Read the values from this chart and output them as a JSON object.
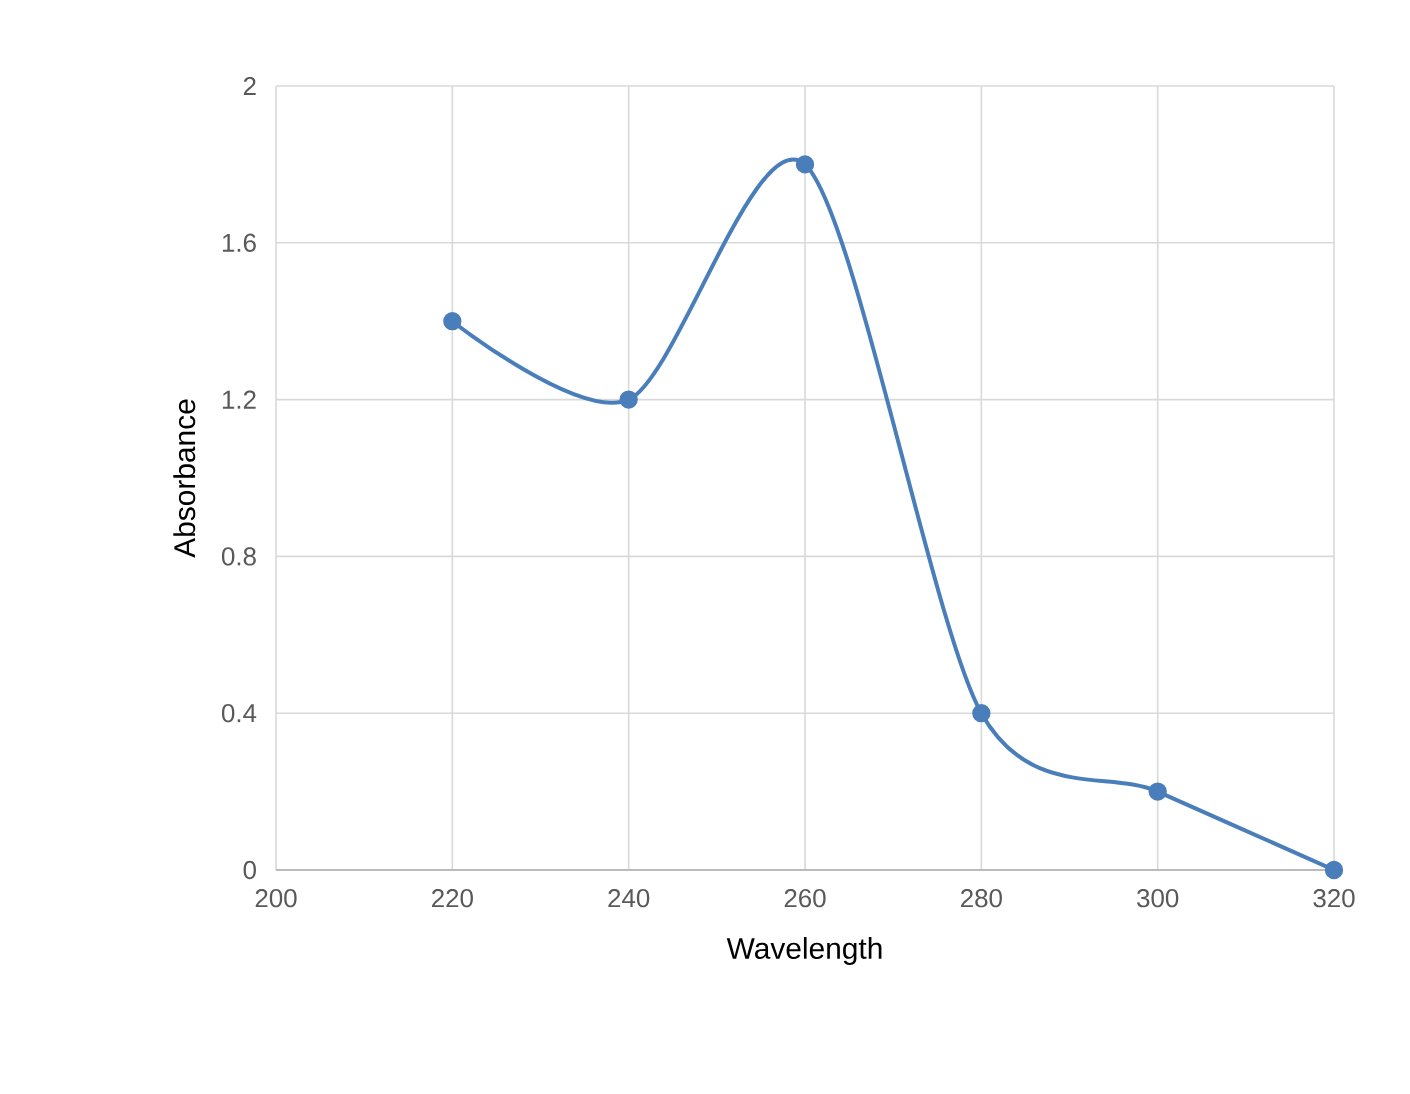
{
  "chart_data": {
    "type": "line",
    "xlabel": "Wavelength",
    "ylabel": "Absorbance",
    "x": [
      220,
      240,
      260,
      280,
      300,
      320
    ],
    "series": [
      {
        "color": "#4a7ebb",
        "values": [
          1.4,
          1.2,
          1.8,
          0.4,
          0.2,
          0
        ]
      }
    ],
    "xlim": [
      200,
      320
    ],
    "ylim": [
      0,
      2
    ],
    "xticks": [
      200,
      220,
      240,
      260,
      280,
      300,
      320
    ],
    "yticks": [
      0,
      0.4,
      0.8,
      1.2,
      1.6,
      2
    ],
    "grid": true,
    "marker": "circle",
    "line_style": "solid"
  }
}
